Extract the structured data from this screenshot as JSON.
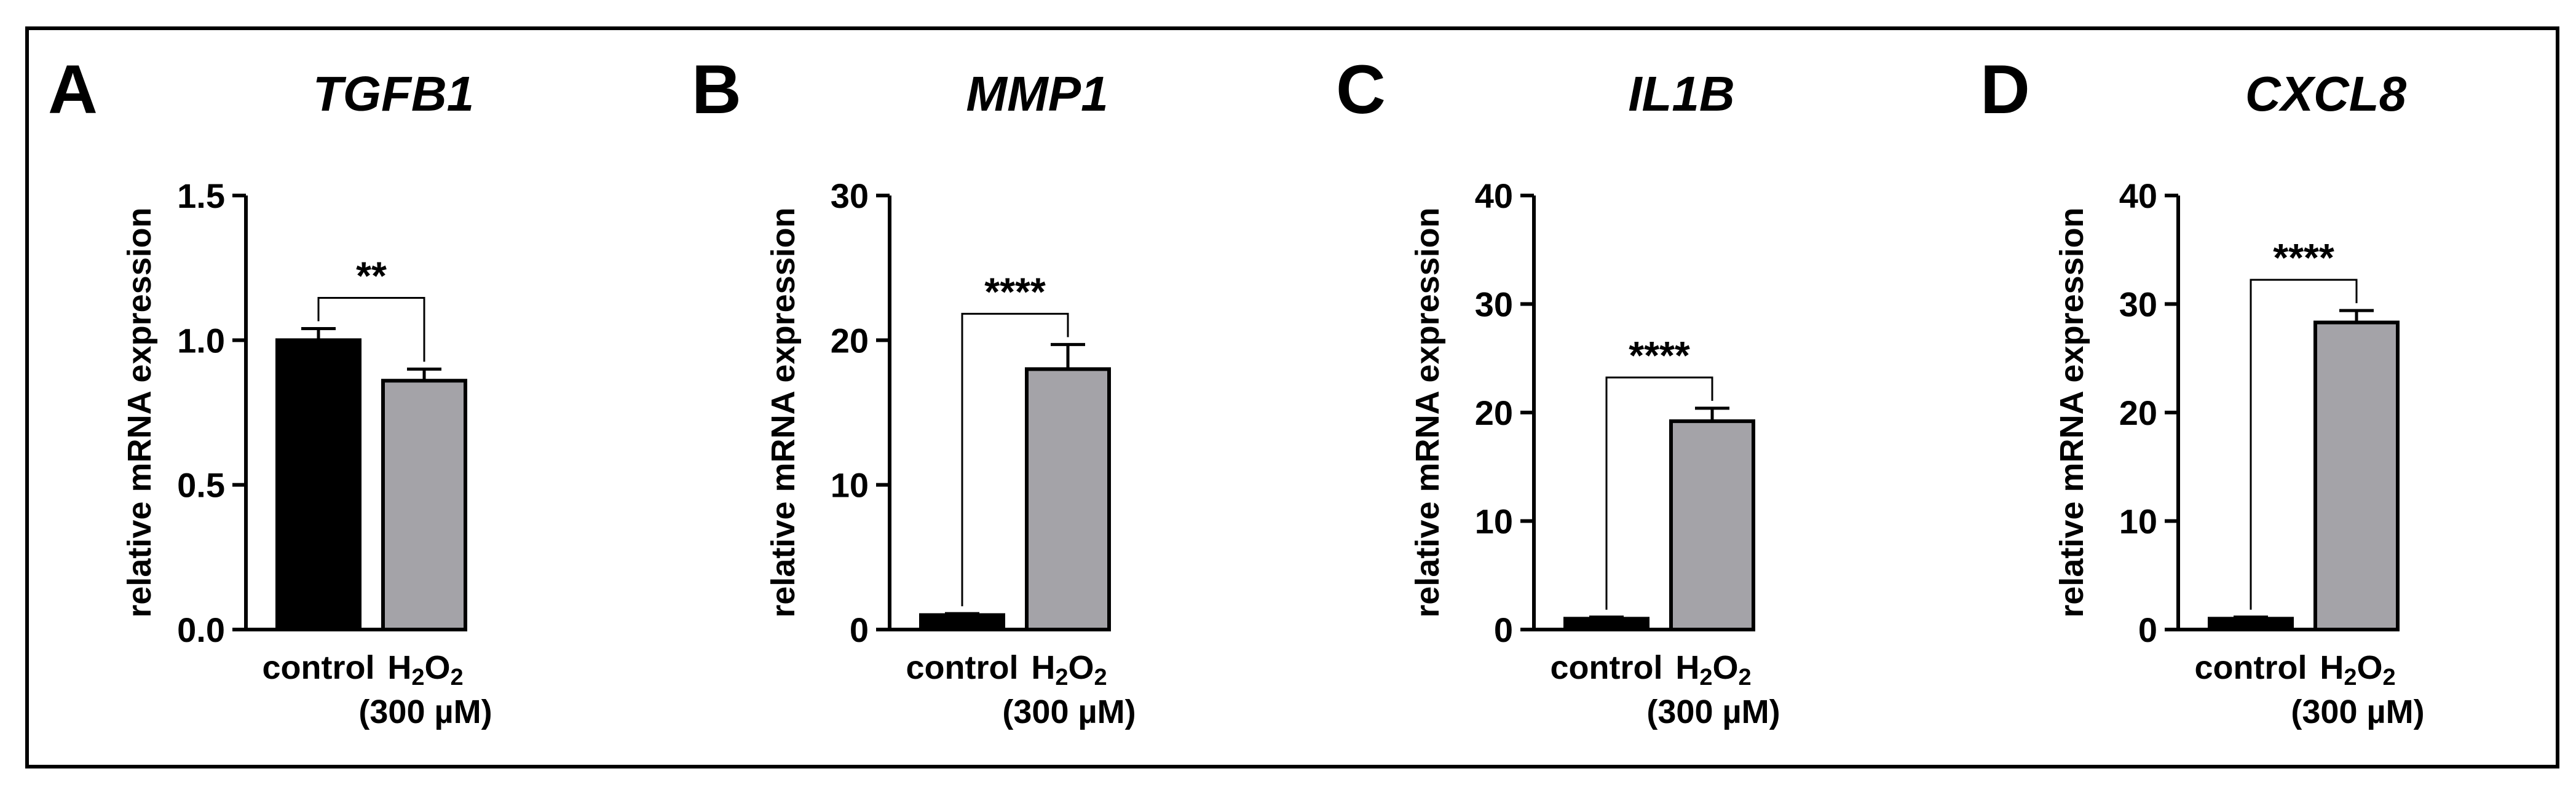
{
  "colors": {
    "frame": "#000000",
    "control_bar": "#000000",
    "treated_bar": "#a4a3a8",
    "text": "#000000"
  },
  "x_labels": {
    "control": "control",
    "treated_main": "H",
    "treated_sub1": "2",
    "treated_mid": "O",
    "treated_sub2": "2",
    "treated_conc": "(300 µM)"
  },
  "chart_data": [
    {
      "type": "bar",
      "panel": "A",
      "title": "TGFB1",
      "ylabel": "relative mRNA expression",
      "xlabel": "",
      "categories": [
        "control",
        "H2O2 (300 µM)"
      ],
      "values": [
        1.0,
        0.86
      ],
      "errors": [
        0.04,
        0.04
      ],
      "ylim": [
        0,
        1.5
      ],
      "yticks": [
        0,
        0.5,
        1.0,
        1.5
      ],
      "ytick_labels": [
        "0.0",
        "0.5",
        "1.0",
        "1.5"
      ],
      "significance": "**"
    },
    {
      "type": "bar",
      "panel": "B",
      "title": "MMP1",
      "ylabel": "relative mRNA expression",
      "xlabel": "",
      "categories": [
        "control",
        "H2O2 (300 µM)"
      ],
      "values": [
        1.0,
        18.0
      ],
      "errors": [
        0.1,
        1.7
      ],
      "ylim": [
        0,
        30
      ],
      "yticks": [
        0,
        10,
        20,
        30
      ],
      "ytick_labels": [
        "0",
        "10",
        "20",
        "30"
      ],
      "significance": "****"
    },
    {
      "type": "bar",
      "panel": "C",
      "title": "IL1B",
      "ylabel": "relative mRNA expression",
      "xlabel": "",
      "categories": [
        "control",
        "H2O2 (300 µM)"
      ],
      "values": [
        1.0,
        19.2
      ],
      "errors": [
        0.15,
        1.2
      ],
      "ylim": [
        0,
        40
      ],
      "yticks": [
        0,
        10,
        20,
        30,
        40
      ],
      "ytick_labels": [
        "0",
        "10",
        "20",
        "30",
        "40"
      ],
      "significance": "****"
    },
    {
      "type": "bar",
      "panel": "D",
      "title": "CXCL8",
      "ylabel": "relative mRNA expression",
      "xlabel": "",
      "categories": [
        "control",
        "H2O2 (300 µM)"
      ],
      "values": [
        1.0,
        28.3
      ],
      "errors": [
        0.15,
        1.1
      ],
      "ylim": [
        0,
        40
      ],
      "yticks": [
        0,
        10,
        20,
        30,
        40
      ],
      "ytick_labels": [
        "0",
        "10",
        "20",
        "30",
        "40"
      ],
      "significance": "****"
    }
  ]
}
